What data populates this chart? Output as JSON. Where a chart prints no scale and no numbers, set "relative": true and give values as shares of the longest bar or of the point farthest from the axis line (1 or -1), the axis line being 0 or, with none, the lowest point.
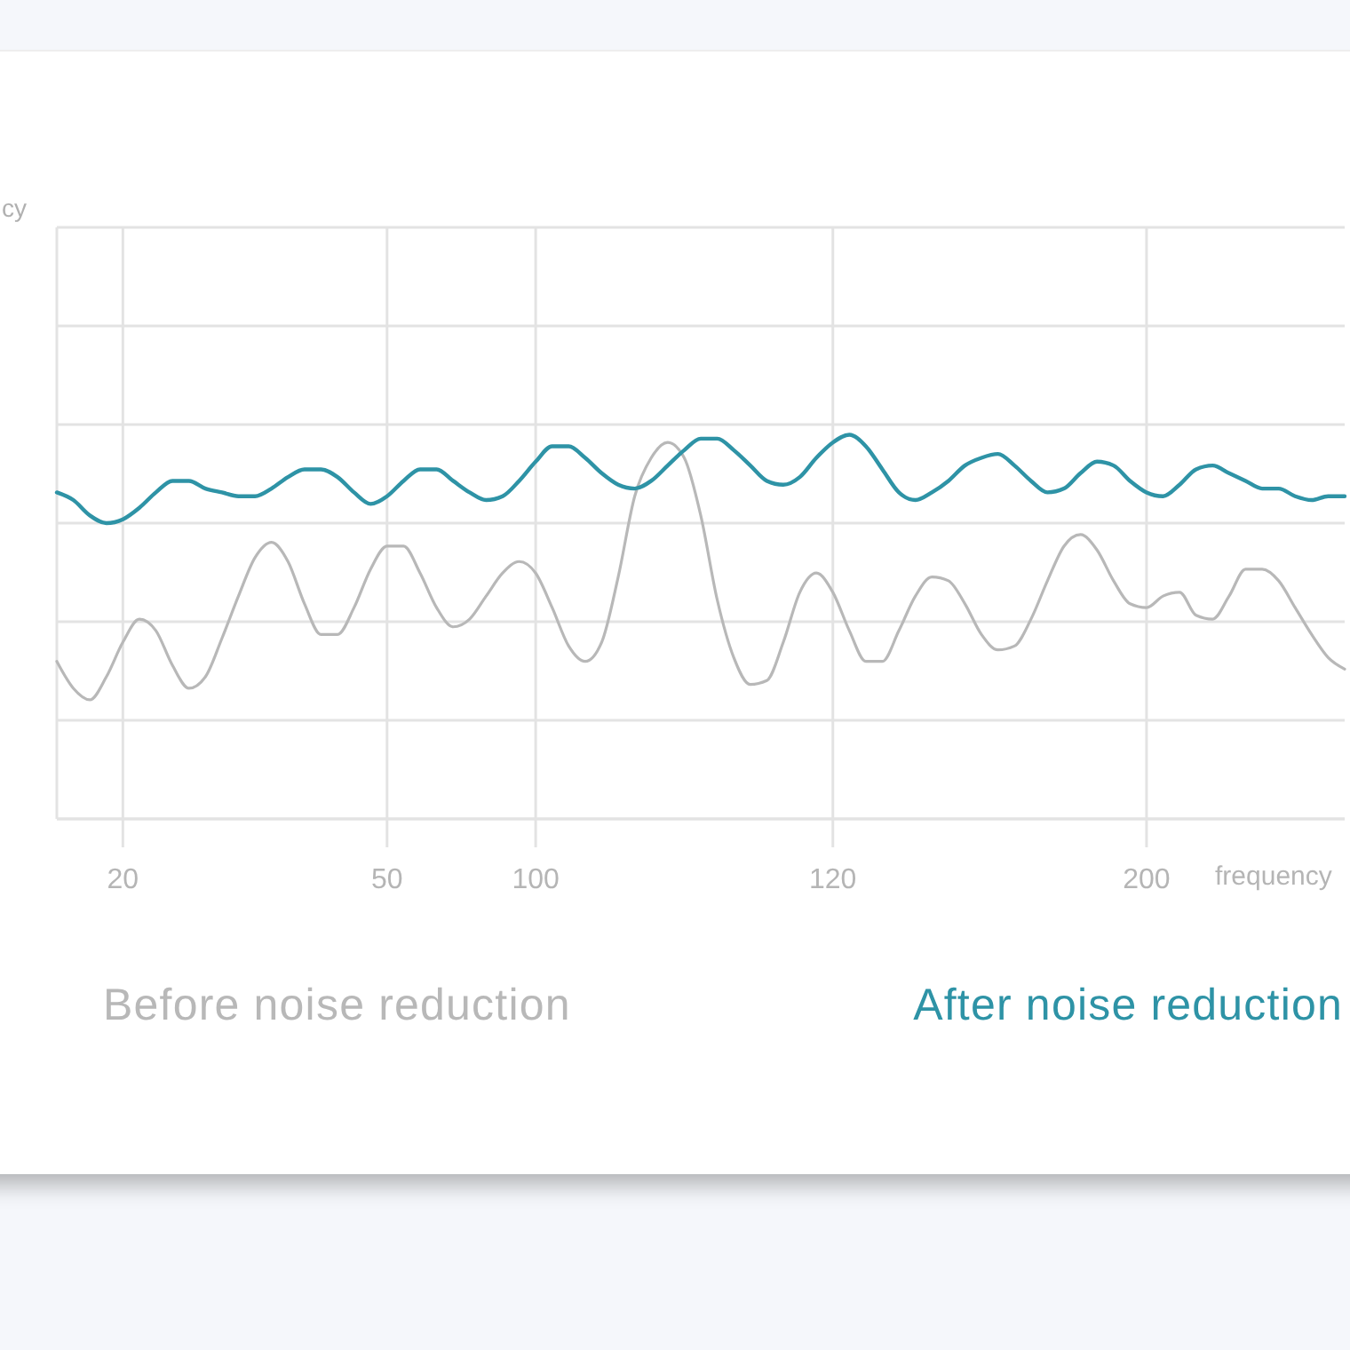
{
  "chart_data": {
    "type": "line",
    "xlabel": "frequency",
    "annotations": [
      "cy"
    ],
    "relative": true,
    "grid": true,
    "legend": "bottom",
    "categories": [
      null,
      null,
      null,
      null,
      "20",
      null,
      null,
      null,
      null,
      null,
      null,
      null,
      null,
      null,
      null,
      null,
      null,
      null,
      null,
      null,
      "50",
      null,
      null,
      null,
      null,
      null,
      null,
      null,
      null,
      "100",
      null,
      null,
      null,
      null,
      null,
      null,
      null,
      null,
      null,
      null,
      null,
      null,
      null,
      null,
      null,
      null,
      null,
      "120",
      null,
      null,
      null,
      null,
      null,
      null,
      null,
      null,
      null,
      null,
      null,
      null,
      null,
      null,
      null,
      null,
      null,
      null,
      "200",
      null,
      null,
      null,
      null,
      null,
      null,
      null,
      null,
      null,
      null,
      null,
      null
    ],
    "series": [
      {
        "name": "Before noise reduction",
        "color": "#b8b8b8",
        "values": [
          0.41,
          0.34,
          0.31,
          0.37,
          0.46,
          0.52,
          0.49,
          0.4,
          0.34,
          0.37,
          0.47,
          0.58,
          0.68,
          0.72,
          0.67,
          0.56,
          0.48,
          0.48,
          0.55,
          0.65,
          0.71,
          0.71,
          0.64,
          0.55,
          0.5,
          0.52,
          0.58,
          0.64,
          0.67,
          0.64,
          0.55,
          0.45,
          0.41,
          0.46,
          0.63,
          0.84,
          0.94,
          0.98,
          0.94,
          0.79,
          0.57,
          0.42,
          0.35,
          0.36,
          0.46,
          0.59,
          0.64,
          0.59,
          0.49,
          0.41,
          0.41,
          0.49,
          0.58,
          0.63,
          0.62,
          0.56,
          0.48,
          0.44,
          0.45,
          0.52,
          0.62,
          0.71,
          0.74,
          0.7,
          0.62,
          0.56,
          0.55,
          0.58,
          0.59,
          0.53,
          0.52,
          0.58,
          0.65,
          0.65,
          0.62,
          0.55,
          0.48,
          0.42,
          0.39
        ]
      },
      {
        "name": "After noise reduction",
        "color": "#2e93a6",
        "values": [
          0.85,
          0.83,
          0.79,
          0.77,
          0.78,
          0.81,
          0.85,
          0.88,
          0.88,
          0.86,
          0.85,
          0.84,
          0.84,
          0.86,
          0.89,
          0.91,
          0.91,
          0.89,
          0.85,
          0.82,
          0.84,
          0.88,
          0.91,
          0.91,
          0.88,
          0.85,
          0.83,
          0.84,
          0.88,
          0.93,
          0.97,
          0.97,
          0.94,
          0.9,
          0.87,
          0.86,
          0.88,
          0.92,
          0.96,
          0.99,
          0.99,
          0.96,
          0.92,
          0.88,
          0.87,
          0.89,
          0.94,
          0.98,
          1,
          0.97,
          0.91,
          0.85,
          0.83,
          0.85,
          0.88,
          0.92,
          0.94,
          0.95,
          0.92,
          0.88,
          0.85,
          0.86,
          0.9,
          0.93,
          0.92,
          0.88,
          0.85,
          0.84,
          0.87,
          0.91,
          0.92,
          0.9,
          0.88,
          0.86,
          0.86,
          0.84,
          0.83,
          0.84,
          0.84
        ]
      }
    ]
  }
}
